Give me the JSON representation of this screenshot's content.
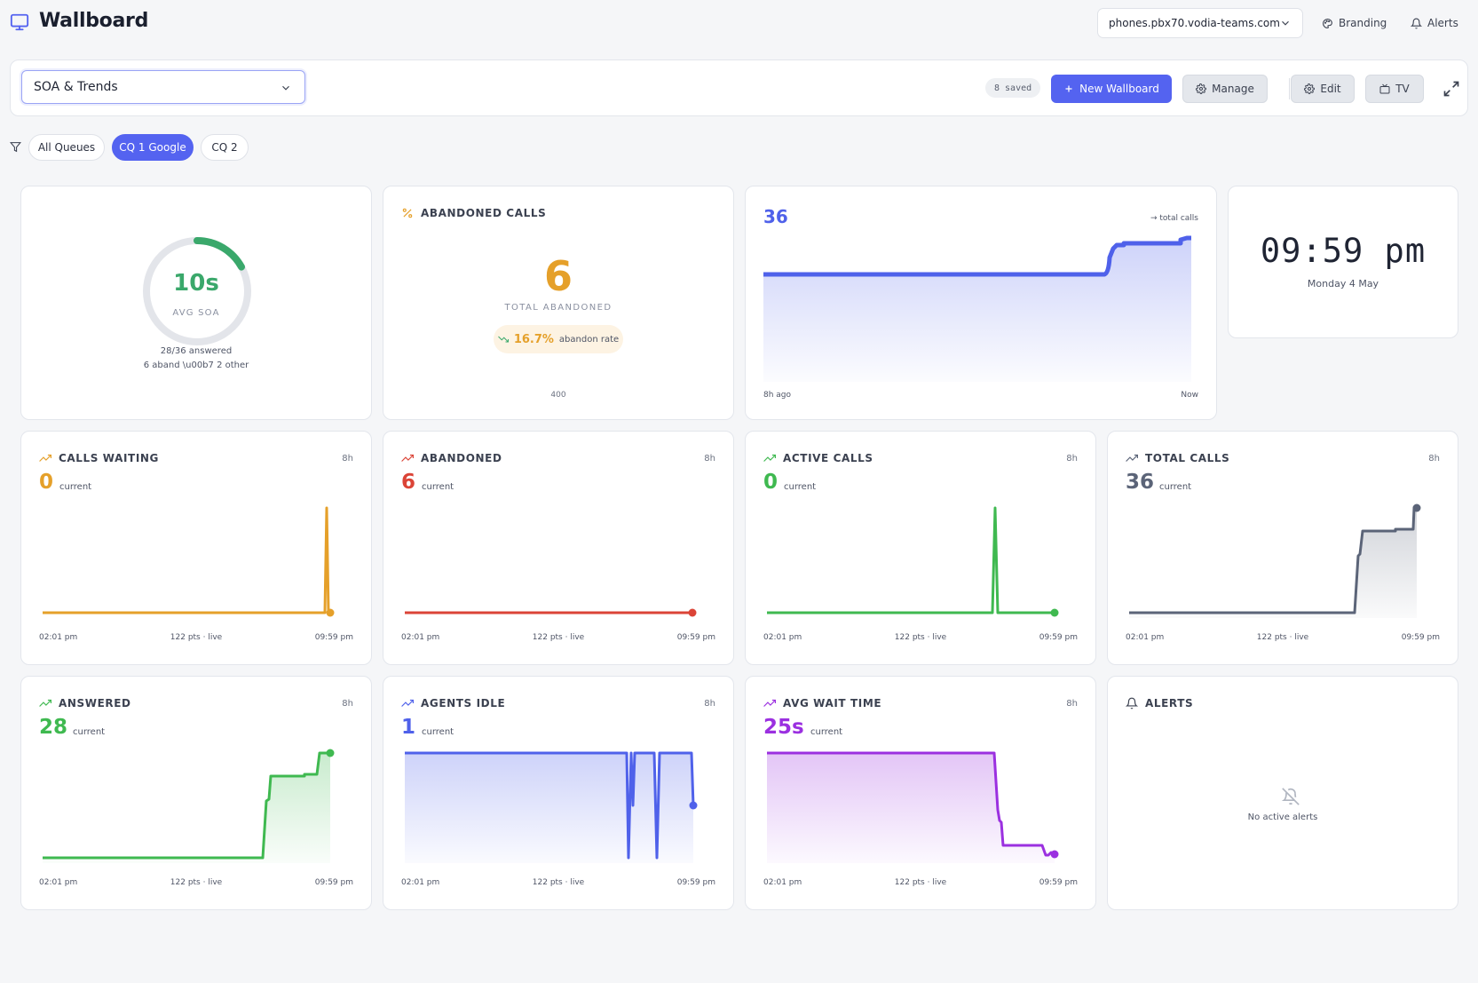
{
  "header": {
    "title": "Wallboard",
    "domain": "phones.pbx70.vodia-teams.com",
    "branding_label": "Branding",
    "alerts_label": "Alerts"
  },
  "toolbar": {
    "selected_wallboard": "SOA & Trends",
    "saved_count": "8 saved",
    "new_label": "New Wallboard",
    "manage_label": "Manage",
    "edit_label": "Edit",
    "tv_label": "TV"
  },
  "queues": {
    "items": [
      "All Queues",
      "CQ 1 Google",
      "CQ 2"
    ],
    "active": "CQ 1 Google"
  },
  "soa_card": {
    "value": "10s",
    "label": "AVG SOA",
    "answered_line": "28/36 answered",
    "detail_line": "6 aband \\u00b7 2 other",
    "ring_fraction": 0.17
  },
  "abandoned_card": {
    "title": "ABANDONED CALLS",
    "value": "6",
    "label": "TOTAL ABANDONED",
    "rate": "16.7%",
    "rate_label": "abandon rate",
    "footer": "400"
  },
  "total_calls_chart": {
    "value": "36",
    "note": "→ total calls",
    "axis_left": "8h ago",
    "axis_right": "Now"
  },
  "clock": {
    "time": "09:59 pm",
    "date": "Monday 4 May"
  },
  "trend_cards": [
    {
      "title": "CALLS WAITING",
      "range": "8h",
      "value": "0",
      "current": "current",
      "axis_left": "02:01 pm",
      "axis_mid": "122 pts · live",
      "axis_right": "09:59 pm",
      "color": "#e5a02a"
    },
    {
      "title": "ABANDONED",
      "range": "8h",
      "value": "6",
      "current": "current",
      "axis_left": "02:01 pm",
      "axis_mid": "122 pts · live",
      "axis_right": "09:59 pm",
      "color": "#db4437"
    },
    {
      "title": "ACTIVE CALLS",
      "range": "8h",
      "value": "0",
      "current": "current",
      "axis_left": "02:01 pm",
      "axis_mid": "122 pts · live",
      "axis_right": "09:59 pm",
      "color": "#3fb950"
    },
    {
      "title": "TOTAL CALLS",
      "range": "8h",
      "value": "36",
      "current": "current",
      "axis_left": "02:01 pm",
      "axis_mid": "122 pts · live",
      "axis_right": "09:59 pm",
      "color": "#5b6478"
    },
    {
      "title": "ANSWERED",
      "range": "8h",
      "value": "28",
      "current": "current",
      "axis_left": "02:01 pm",
      "axis_mid": "122 pts · live",
      "axis_right": "09:59 pm",
      "color": "#3fb950"
    },
    {
      "title": "AGENTS IDLE",
      "range": "8h",
      "value": "1",
      "current": "current",
      "axis_left": "02:01 pm",
      "axis_mid": "122 pts · live",
      "axis_right": "09:59 pm",
      "color": "#4f61ea"
    },
    {
      "title": "AVG WAIT TIME",
      "range": "8h",
      "value": "25s",
      "current": "current",
      "axis_left": "02:01 pm",
      "axis_mid": "122 pts · live",
      "axis_right": "09:59 pm",
      "color": "#9b30e0"
    }
  ],
  "alerts_card": {
    "title": "ALERTS",
    "empty": "No active alerts"
  },
  "colors": {
    "accent": "#5463f0",
    "soa": "#3aa86b",
    "abandoned": "#e5a02a"
  }
}
